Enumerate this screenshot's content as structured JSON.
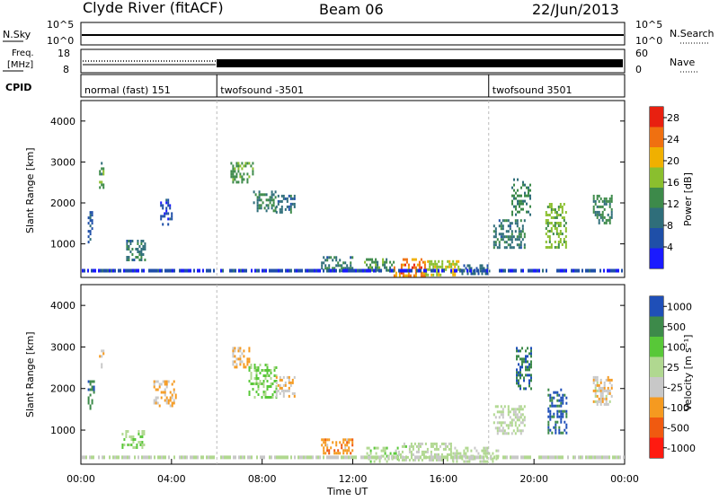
{
  "header": {
    "station": "Clyde River (fitACF)",
    "beam": "Beam 06",
    "date": "22/Jun/2013"
  },
  "top_strips": {
    "nsky_label": "N.Sky",
    "nsky_ticks": [
      "10^5",
      "10^0"
    ],
    "nsearch_label": "N.Search",
    "nsearch_ticks": [
      "10^5",
      "10^0"
    ],
    "freq_label_1": "Freq.",
    "freq_label_2": "[MHz]",
    "freq_ticks": [
      "18",
      "8"
    ],
    "nave_label": "Nave",
    "nave_ticks": [
      "60",
      "0"
    ],
    "cpid_label": "CPID",
    "cpid_segments": [
      {
        "label": "normal (fast) 151",
        "start_hour": 0
      },
      {
        "label": "twofsound -3501",
        "start_hour": 6
      },
      {
        "label": "twofsound 3501",
        "start_hour": 18
      }
    ]
  },
  "x_axis": {
    "title": "Time UT",
    "ticks": [
      "00:00",
      "04:00",
      "08:00",
      "12:00",
      "16:00",
      "20:00",
      "00:00"
    ]
  },
  "chart_data": [
    {
      "type": "heatmap",
      "name": "Power",
      "ylabel": "Slant Range [km]",
      "yticks": [
        "4000",
        "3000",
        "2000",
        "1000"
      ],
      "ylim": [
        180,
        4500
      ],
      "xlim": [
        0,
        24
      ],
      "colorbar_title": "Power [dB]",
      "colorbar_ticks": [
        "28",
        "24",
        "20",
        "16",
        "12",
        "8",
        "4"
      ],
      "colorbar_range": [
        0,
        30
      ],
      "colors": [
        "#1a1aff",
        "#1f4fa8",
        "#2f6e7a",
        "#3d8a4a",
        "#8abf2e",
        "#f0b000",
        "#f07010",
        "#e82010"
      ],
      "patches": [
        {
          "t": [
            0.3,
            0.5
          ],
          "r": [
            1000,
            1800
          ],
          "v": 8
        },
        {
          "t": [
            0.8,
            1.0
          ],
          "r": [
            2400,
            3000
          ],
          "v": 13
        },
        {
          "t": [
            2.0,
            2.8
          ],
          "r": [
            600,
            1100
          ],
          "v": 10
        },
        {
          "t": [
            3.5,
            4.0
          ],
          "r": [
            1500,
            2100
          ],
          "v": 6
        },
        {
          "t": [
            6.6,
            7.6
          ],
          "r": [
            2500,
            3000
          ],
          "v": 14
        },
        {
          "t": [
            7.6,
            8.6
          ],
          "r": [
            1800,
            2300
          ],
          "v": 12
        },
        {
          "t": [
            8.6,
            9.4
          ],
          "r": [
            1800,
            2200
          ],
          "v": 9
        },
        {
          "t": [
            10.6,
            12.0
          ],
          "r": [
            350,
            700
          ],
          "v": 10
        },
        {
          "t": [
            12.5,
            13.8
          ],
          "r": [
            350,
            650
          ],
          "v": 13
        },
        {
          "t": [
            13.8,
            15.2
          ],
          "r": [
            250,
            650
          ],
          "v": 24
        },
        {
          "t": [
            15.2,
            16.8
          ],
          "r": [
            250,
            600
          ],
          "v": 18
        },
        {
          "t": [
            16.8,
            18.0
          ],
          "r": [
            250,
            500
          ],
          "v": 8
        },
        {
          "t": [
            18.2,
            19.6
          ],
          "r": [
            900,
            1600
          ],
          "v": 10
        },
        {
          "t": [
            19.0,
            19.8
          ],
          "r": [
            1700,
            2600
          ],
          "v": 12
        },
        {
          "t": [
            20.5,
            21.4
          ],
          "r": [
            900,
            2000
          ],
          "v": 16
        },
        {
          "t": [
            22.6,
            23.4
          ],
          "r": [
            1500,
            2200
          ],
          "v": 12
        }
      ]
    },
    {
      "type": "heatmap",
      "name": "Velocity",
      "ylabel": "Slant Range [km]",
      "yticks": [
        "4000",
        "3000",
        "2000",
        "1000"
      ],
      "ylim": [
        180,
        4500
      ],
      "xlim": [
        0,
        24
      ],
      "colorbar_title": "Velocity [m s⁻¹]",
      "colorbar_ticks": [
        "1000",
        "500",
        "100",
        "25",
        "-25",
        "-100",
        "-500",
        "-1000"
      ],
      "colorbar_range": [
        -1000,
        1000
      ],
      "colors": [
        "#ff1a10",
        "#f05a10",
        "#f59a20",
        "#c8c8c8",
        "#b0d890",
        "#58c838",
        "#3d8a4a",
        "#1f4fb8"
      ],
      "patches": [
        {
          "t": [
            0.3,
            0.6
          ],
          "r": [
            1500,
            2200
          ],
          "v": 700
        },
        {
          "t": [
            0.8,
            1.0
          ],
          "r": [
            2500,
            3000
          ],
          "v": -300
        },
        {
          "t": [
            1.8,
            2.8
          ],
          "r": [
            600,
            1000
          ],
          "v": 200
        },
        {
          "t": [
            3.2,
            4.2
          ],
          "r": [
            1600,
            2200
          ],
          "v": -300
        },
        {
          "t": [
            6.6,
            7.4
          ],
          "r": [
            2500,
            3000
          ],
          "v": -300
        },
        {
          "t": [
            7.4,
            8.6
          ],
          "r": [
            1800,
            2600
          ],
          "v": 300
        },
        {
          "t": [
            8.6,
            9.4
          ],
          "r": [
            1800,
            2300
          ],
          "v": -200
        },
        {
          "t": [
            10.6,
            12.0
          ],
          "r": [
            450,
            800
          ],
          "v": -400
        },
        {
          "t": [
            12.6,
            14.0
          ],
          "r": [
            250,
            600
          ],
          "v": 150
        },
        {
          "t": [
            14.0,
            16.4
          ],
          "r": [
            250,
            700
          ],
          "v": 80
        },
        {
          "t": [
            16.4,
            18.4
          ],
          "r": [
            250,
            600
          ],
          "v": 60
        },
        {
          "t": [
            18.2,
            19.6
          ],
          "r": [
            900,
            1600
          ],
          "v": 60
        },
        {
          "t": [
            19.2,
            19.9
          ],
          "r": [
            2000,
            3000
          ],
          "v": 700
        },
        {
          "t": [
            20.6,
            21.4
          ],
          "r": [
            900,
            2000
          ],
          "v": 800
        },
        {
          "t": [
            22.6,
            23.4
          ],
          "r": [
            1600,
            2300
          ],
          "v": -150
        }
      ]
    }
  ]
}
